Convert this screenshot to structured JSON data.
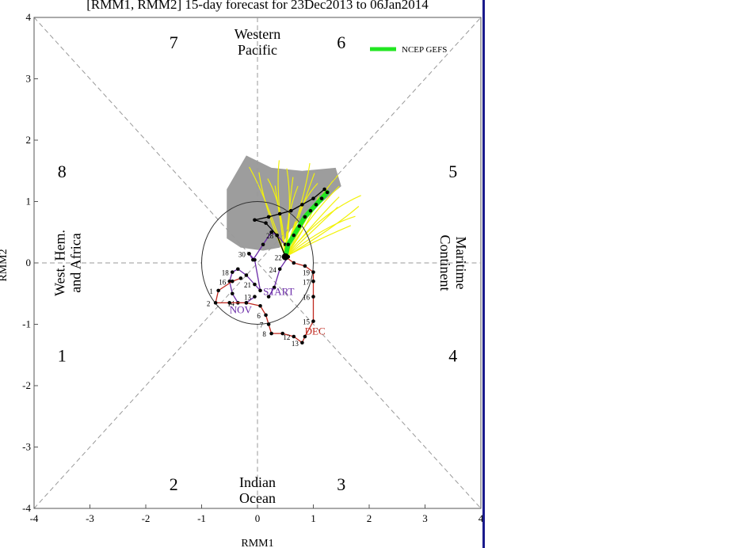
{
  "colors": {
    "frame_border": "#1a1a8c",
    "ensemble_line": "#f2f20a",
    "gefs_line": "#22e622",
    "observed_dec": "#c0281e",
    "observed_nov": "#6a2aa8",
    "spread_fill": "#8c8c8c",
    "diagonal": "#999999"
  },
  "chart_data": {
    "type": "line",
    "title": "[RMM1, RMM2] 15-day forecast for 23Dec2013 to 06Jan2014",
    "xlabel": "RMM1",
    "ylabel": "RMM2",
    "xlim": [
      -4,
      4
    ],
    "ylim": [
      -4,
      4
    ],
    "x_ticks": [
      -4,
      -3,
      -2,
      -1,
      0,
      1,
      2,
      3,
      4
    ],
    "y_ticks": [
      -4,
      -3,
      -2,
      -1,
      0,
      1,
      2,
      3,
      4
    ],
    "grid": false,
    "diagonals": true,
    "unit_circle": true,
    "legend_position": "top-right",
    "legend": [
      {
        "name": "NCEP GEFS",
        "color": "#22e622"
      }
    ],
    "phases": [
      {
        "label": "1",
        "x": -3.5,
        "y": -1.5
      },
      {
        "label": "2",
        "x": -1.5,
        "y": -3.6
      },
      {
        "label": "3",
        "x": 1.5,
        "y": -3.6
      },
      {
        "label": "4",
        "x": 3.5,
        "y": -1.5
      },
      {
        "label": "5",
        "x": 3.5,
        "y": 1.5
      },
      {
        "label": "6",
        "x": 1.5,
        "y": 3.6
      },
      {
        "label": "7",
        "x": -1.5,
        "y": 3.6
      },
      {
        "label": "8",
        "x": -3.5,
        "y": 1.5
      }
    ],
    "regions": [
      {
        "lines": [
          "Western",
          "Pacific"
        ],
        "x": 0.0,
        "y": 3.6,
        "rotate": 0
      },
      {
        "lines": [
          "Indian",
          "Ocean"
        ],
        "x": 0.0,
        "y": -3.7,
        "rotate": 0
      },
      {
        "lines": [
          "West. Hem.",
          "and Africa"
        ],
        "x": -3.4,
        "y": 0.0,
        "rotate": -90
      },
      {
        "lines": [
          "Maritime",
          "Continent"
        ],
        "x": 3.5,
        "y": 0.0,
        "rotate": 90
      }
    ],
    "series": [
      {
        "name": "NOV",
        "color": "#6a2aa8",
        "points": [
          {
            "x": -0.05,
            "y": -0.55,
            "label": "13"
          },
          {
            "x": -0.2,
            "y": -0.65,
            "label": ""
          },
          {
            "x": -0.35,
            "y": -0.65,
            "label": "14"
          },
          {
            "x": -0.45,
            "y": -0.5,
            "label": ""
          },
          {
            "x": -0.5,
            "y": -0.3,
            "label": "16"
          },
          {
            "x": -0.45,
            "y": -0.15,
            "label": "18"
          },
          {
            "x": -0.35,
            "y": -0.1,
            "label": ""
          },
          {
            "x": -0.2,
            "y": -0.2,
            "label": ""
          },
          {
            "x": -0.05,
            "y": -0.35,
            "label": "21"
          },
          {
            "x": 0.05,
            "y": -0.45,
            "label": ""
          },
          {
            "x": -0.05,
            "y": 0.05,
            "label": ""
          },
          {
            "x": -0.15,
            "y": 0.15,
            "label": "30"
          }
        ]
      },
      {
        "name": "START",
        "color": "#6a2aa8",
        "points": [
          {
            "x": -0.15,
            "y": 0.15,
            "label": ""
          },
          {
            "x": -0.08,
            "y": 0.05,
            "label": ""
          },
          {
            "x": 0.1,
            "y": 0.3,
            "label": ""
          },
          {
            "x": 0.25,
            "y": 0.5,
            "label": ""
          },
          {
            "x": 0.35,
            "y": 0.45,
            "label": "28"
          },
          {
            "x": 0.5,
            "y": 0.3,
            "label": ""
          },
          {
            "x": 0.55,
            "y": 0.1,
            "label": ""
          },
          {
            "x": 0.4,
            "y": -0.1,
            "label": "24"
          },
          {
            "x": 0.3,
            "y": -0.4,
            "label": ""
          },
          {
            "x": 0.2,
            "y": -0.55,
            "label": ""
          }
        ]
      },
      {
        "name": "DEC",
        "color": "#c0281e",
        "points": [
          {
            "x": 0.5,
            "y": 0.1,
            "label": "22"
          },
          {
            "x": 0.65,
            "y": 0.0,
            "label": ""
          },
          {
            "x": 0.85,
            "y": -0.05,
            "label": ""
          },
          {
            "x": 1.0,
            "y": -0.15,
            "label": "19"
          },
          {
            "x": 1.0,
            "y": -0.3,
            "label": "17"
          },
          {
            "x": 1.0,
            "y": -0.55,
            "label": "16"
          },
          {
            "x": 1.0,
            "y": -0.95,
            "label": "15"
          },
          {
            "x": 0.85,
            "y": -1.2,
            "label": ""
          },
          {
            "x": 0.8,
            "y": -1.3,
            "label": "13"
          },
          {
            "x": 0.65,
            "y": -1.2,
            "label": "12"
          },
          {
            "x": 0.45,
            "y": -1.15,
            "label": ""
          },
          {
            "x": 0.25,
            "y": -1.15,
            "label": "8"
          },
          {
            "x": 0.2,
            "y": -1.0,
            "label": "7"
          },
          {
            "x": 0.15,
            "y": -0.85,
            "label": "6"
          },
          {
            "x": 0.05,
            "y": -0.7,
            "label": ""
          },
          {
            "x": -0.2,
            "y": -0.65,
            "label": ""
          },
          {
            "x": -0.5,
            "y": -0.65,
            "label": ""
          },
          {
            "x": -0.75,
            "y": -0.65,
            "label": "2"
          },
          {
            "x": -0.7,
            "y": -0.45,
            "label": "1"
          },
          {
            "x": -0.45,
            "y": -0.3,
            "label": ""
          },
          {
            "x": -0.3,
            "y": -0.25,
            "label": ""
          }
        ]
      },
      {
        "name": "NCEP GEFS",
        "color": "#22e622",
        "points": [
          {
            "x": 0.5,
            "y": 0.1,
            "label": ""
          },
          {
            "x": 0.55,
            "y": 0.3,
            "label": ""
          },
          {
            "x": 0.65,
            "y": 0.45,
            "label": ""
          },
          {
            "x": 0.75,
            "y": 0.6,
            "label": ""
          },
          {
            "x": 0.85,
            "y": 0.75,
            "label": ""
          },
          {
            "x": 0.95,
            "y": 0.85,
            "label": ""
          },
          {
            "x": 1.05,
            "y": 0.95,
            "label": ""
          },
          {
            "x": 1.15,
            "y": 1.05,
            "label": ""
          },
          {
            "x": 1.25,
            "y": 1.15,
            "label": ""
          }
        ]
      },
      {
        "name": "",
        "color": "#000000",
        "points": [
          {
            "x": 0.5,
            "y": 0.1,
            "label": ""
          },
          {
            "x": 0.35,
            "y": 0.45,
            "label": ""
          },
          {
            "x": 0.15,
            "y": 0.65,
            "label": ""
          },
          {
            "x": -0.05,
            "y": 0.7,
            "label": ""
          },
          {
            "x": 0.2,
            "y": 0.75,
            "label": ""
          },
          {
            "x": 0.4,
            "y": 0.8,
            "label": ""
          },
          {
            "x": 0.6,
            "y": 0.85,
            "label": ""
          },
          {
            "x": 0.8,
            "y": 0.95,
            "label": ""
          },
          {
            "x": 1.0,
            "y": 1.05,
            "label": ""
          },
          {
            "x": 1.2,
            "y": 1.2,
            "label": ""
          }
        ]
      }
    ]
  }
}
